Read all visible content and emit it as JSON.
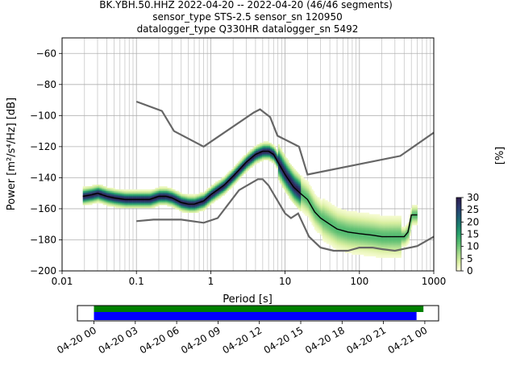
{
  "chart_data": {
    "type": "heatmap",
    "title_lines": [
      "BK.YBH.50.HHZ   2022-04-20 -- 2022-04-20  (46/46 segments)",
      "sensor_type STS-2.5 sensor_sn 120950",
      "datalogger_type Q330HR datalogger_sn 5492"
    ],
    "xlabel": "Period [s]",
    "ylabel": "Power [m²/s⁴/Hz] [dB]",
    "xscale": "log",
    "xlim": [
      0.01,
      1000
    ],
    "ylim": [
      -200,
      -50
    ],
    "x_ticks": [
      {
        "value": 0.01,
        "label": "0.01"
      },
      {
        "value": 0.1,
        "label": "0.1"
      },
      {
        "value": 1,
        "label": "1"
      },
      {
        "value": 10,
        "label": "10"
      },
      {
        "value": 100,
        "label": "100"
      },
      {
        "value": 1000,
        "label": "1000"
      }
    ],
    "y_ticks": [
      {
        "value": -60,
        "label": "−60"
      },
      {
        "value": -80,
        "label": "−80"
      },
      {
        "value": -100,
        "label": "−100"
      },
      {
        "value": -120,
        "label": "−120"
      },
      {
        "value": -140,
        "label": "−140"
      },
      {
        "value": -160,
        "label": "−160"
      },
      {
        "value": -180,
        "label": "−180"
      },
      {
        "value": -200,
        "label": "−200"
      }
    ],
    "grid": true,
    "colorbar": {
      "label": "[%]",
      "range": [
        0,
        30
      ],
      "ticks": [
        {
          "value": 0,
          "label": "0"
        },
        {
          "value": 5,
          "label": "5"
        },
        {
          "value": 10,
          "label": "10"
        },
        {
          "value": 15,
          "label": "15"
        },
        {
          "value": 20,
          "label": "20"
        },
        {
          "value": 25,
          "label": "25"
        },
        {
          "value": 30,
          "label": "30"
        }
      ],
      "colors": [
        "#ffffe0",
        "#d9efa0",
        "#9fd88a",
        "#5dbf72",
        "#2aa36b",
        "#1a7f6e",
        "#1e5b72",
        "#2a3a70",
        "#2d1e4e"
      ]
    },
    "mean_psd": [
      [
        0.019,
        -152
      ],
      [
        0.025,
        -151
      ],
      [
        0.03,
        -150
      ],
      [
        0.04,
        -152
      ],
      [
        0.05,
        -153
      ],
      [
        0.07,
        -154
      ],
      [
        0.1,
        -154
      ],
      [
        0.15,
        -154
      ],
      [
        0.2,
        -152
      ],
      [
        0.25,
        -152
      ],
      [
        0.3,
        -153
      ],
      [
        0.4,
        -156
      ],
      [
        0.5,
        -157
      ],
      [
        0.6,
        -157
      ],
      [
        0.8,
        -155
      ],
      [
        1,
        -151
      ],
      [
        1.5,
        -145
      ],
      [
        2,
        -139
      ],
      [
        3,
        -130
      ],
      [
        4,
        -125
      ],
      [
        5,
        -123
      ],
      [
        6,
        -123
      ],
      [
        7,
        -125
      ],
      [
        8,
        -130
      ],
      [
        10,
        -138
      ],
      [
        13,
        -146
      ],
      [
        16,
        -150
      ],
      [
        20,
        -154
      ],
      [
        25,
        -162
      ],
      [
        30,
        -166
      ],
      [
        40,
        -170
      ],
      [
        50,
        -173
      ],
      [
        70,
        -175
      ],
      [
        100,
        -176
      ],
      [
        150,
        -177
      ],
      [
        200,
        -178
      ],
      [
        300,
        -178
      ],
      [
        400,
        -178
      ],
      [
        450,
        -175
      ],
      [
        500,
        -164
      ],
      [
        550,
        -164
      ],
      [
        600,
        -164
      ]
    ],
    "nlnm": [
      [
        0.1,
        -168
      ],
      [
        0.17,
        -167
      ],
      [
        0.4,
        -167
      ],
      [
        0.8,
        -169
      ],
      [
        1.24,
        -166
      ],
      [
        2.4,
        -148
      ],
      [
        4.3,
        -141
      ],
      [
        5,
        -141
      ],
      [
        6,
        -145
      ],
      [
        10,
        -163
      ],
      [
        12,
        -166
      ],
      [
        15,
        -163
      ],
      [
        21,
        -178
      ],
      [
        30,
        -185
      ],
      [
        45,
        -187
      ],
      [
        70,
        -187
      ],
      [
        100,
        -185
      ],
      [
        150,
        -185
      ],
      [
        200,
        -186
      ],
      [
        300,
        -187
      ],
      [
        600,
        -184
      ],
      [
        1000,
        -178
      ]
    ],
    "nhnm": [
      [
        0.1,
        -91
      ],
      [
        0.22,
        -97
      ],
      [
        0.32,
        -110
      ],
      [
        0.8,
        -120
      ],
      [
        3.8,
        -98
      ],
      [
        4.6,
        -96
      ],
      [
        6.3,
        -101
      ],
      [
        7.9,
        -113
      ],
      [
        15.4,
        -120
      ],
      [
        20,
        -138
      ],
      [
        354.8,
        -126
      ],
      [
        1000,
        -111
      ]
    ],
    "timeline": {
      "tick_labels": [
        "04-20 00",
        "04-20 03",
        "04-20 06",
        "04-20 09",
        "04-20 12",
        "04-20 15",
        "04-20 18",
        "04-20 21",
        "04-21 00"
      ],
      "tick_hours": [
        0,
        3,
        6,
        9,
        12,
        15,
        18,
        21,
        24
      ],
      "range_hours": [
        -1.2,
        25
      ],
      "data_bar": {
        "start_hours": 0,
        "end_hours": 23.9,
        "color": "#008000"
      },
      "psd_bar": {
        "start_hours": 0,
        "end_hours": 23.4,
        "color": "#0000ff"
      }
    }
  }
}
